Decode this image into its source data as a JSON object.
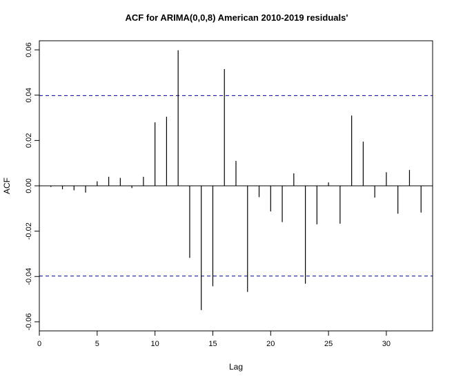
{
  "chart_data": {
    "type": "bar",
    "title": "ACF for ARIMA(0,0,8) American 2010-2019 residuals'",
    "xlabel": "Lag",
    "ylabel": "ACF",
    "xlim": [
      0,
      34
    ],
    "ylim": [
      -0.064,
      0.064
    ],
    "xticks": [
      0,
      5,
      10,
      15,
      20,
      25,
      30
    ],
    "yticks": [
      "-0.06",
      "-0.04",
      "-0.02",
      "0.00",
      "0.02",
      "0.04",
      "0.06"
    ],
    "lags": [
      1,
      2,
      3,
      4,
      5,
      6,
      7,
      8,
      9,
      10,
      11,
      12,
      13,
      14,
      15,
      16,
      17,
      18,
      19,
      20,
      21,
      22,
      23,
      24,
      25,
      26,
      27,
      28,
      29,
      30,
      31,
      32,
      33
    ],
    "values": [
      -0.0005,
      -0.0015,
      -0.002,
      -0.003,
      0.002,
      0.004,
      0.0035,
      -0.001,
      0.004,
      0.028,
      0.0305,
      0.0598,
      -0.0318,
      -0.0548,
      -0.0443,
      0.0515,
      0.011,
      -0.0468,
      -0.005,
      -0.0113,
      -0.016,
      0.0055,
      -0.0432,
      -0.017,
      0.0015,
      -0.0167,
      0.031,
      0.0195,
      -0.0052,
      0.006,
      -0.0123,
      0.007,
      -0.0118
    ],
    "confidence_bounds": [
      0.0398,
      -0.0398
    ],
    "bound_color": "#00008b",
    "grid": false,
    "legend": false
  }
}
